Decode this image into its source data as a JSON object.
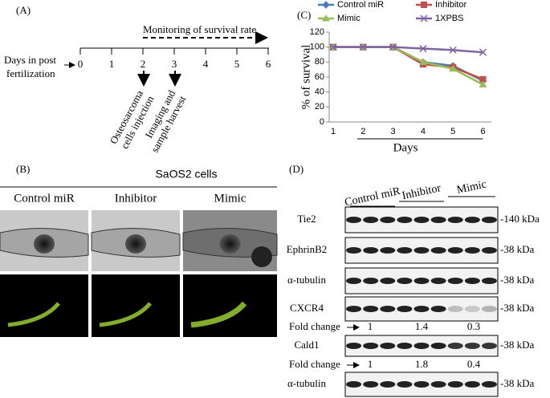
{
  "panel_a": {
    "label": "(A)",
    "monitoring": "Monitoring  of survival rate",
    "days_label": [
      "Days in post",
      "fertilization"
    ],
    "ticks": [
      "0",
      "1",
      "2",
      "3",
      "4",
      "5",
      "6"
    ],
    "events": [
      {
        "lines": [
          "Osteosarcoma",
          "cells injection"
        ]
      },
      {
        "lines": [
          "Imaging and",
          "sample harvest"
        ]
      }
    ]
  },
  "panel_b": {
    "label": "(B)",
    "title": "SaOS2 cells",
    "columns": [
      "Control miR",
      "Inhibitor",
      "Mimic"
    ]
  },
  "chart_data": {
    "type": "line",
    "panel_label": "(C)",
    "y_label": "% of survival",
    "x_label": "Days",
    "categories": [
      "1",
      "2",
      "3",
      "4",
      "5",
      "6"
    ],
    "series": [
      {
        "name": "Control miR",
        "color": "#4a7ebb",
        "marker": "diamond",
        "values": [
          100,
          100,
          100,
          80,
          75,
          55
        ]
      },
      {
        "name": "Inhibitor",
        "color": "#c0504d",
        "marker": "square",
        "values": [
          100,
          100,
          100,
          77,
          73,
          57
        ]
      },
      {
        "name": "Mimic",
        "color": "#9bbb59",
        "marker": "triangle",
        "values": [
          100,
          100,
          100,
          80,
          71,
          50
        ]
      },
      {
        "name": "1XPBS",
        "color": "#8064a2",
        "marker": "x",
        "values": [
          100,
          100,
          100,
          98,
          96,
          93
        ]
      }
    ],
    "ylim": [
      0,
      120
    ],
    "yticks": [
      0,
      20,
      40,
      60,
      80,
      100,
      120
    ]
  },
  "panel_d": {
    "label": "(D)",
    "groups": [
      "Control miR",
      "Inhibitor",
      "Mimic"
    ],
    "blots": [
      {
        "name": "Tie2",
        "size": "-140 kDa"
      },
      {
        "name": "EphrinB2",
        "size": "-38 kDa"
      },
      {
        "name": "α-tubulin",
        "size": "-38 kDa"
      },
      {
        "name": "CXCR4",
        "size": "-38 kDa"
      },
      {
        "name": "Cald1",
        "size": "-38 kDa"
      },
      {
        "name": "α-tubulin",
        "size": "-38 kDa"
      }
    ],
    "fold_changes": [
      {
        "label": "Fold change",
        "values": [
          1,
          1.4,
          0.3
        ]
      },
      {
        "label": "Fold change",
        "values": [
          1,
          1.8,
          0.4
        ]
      }
    ]
  }
}
